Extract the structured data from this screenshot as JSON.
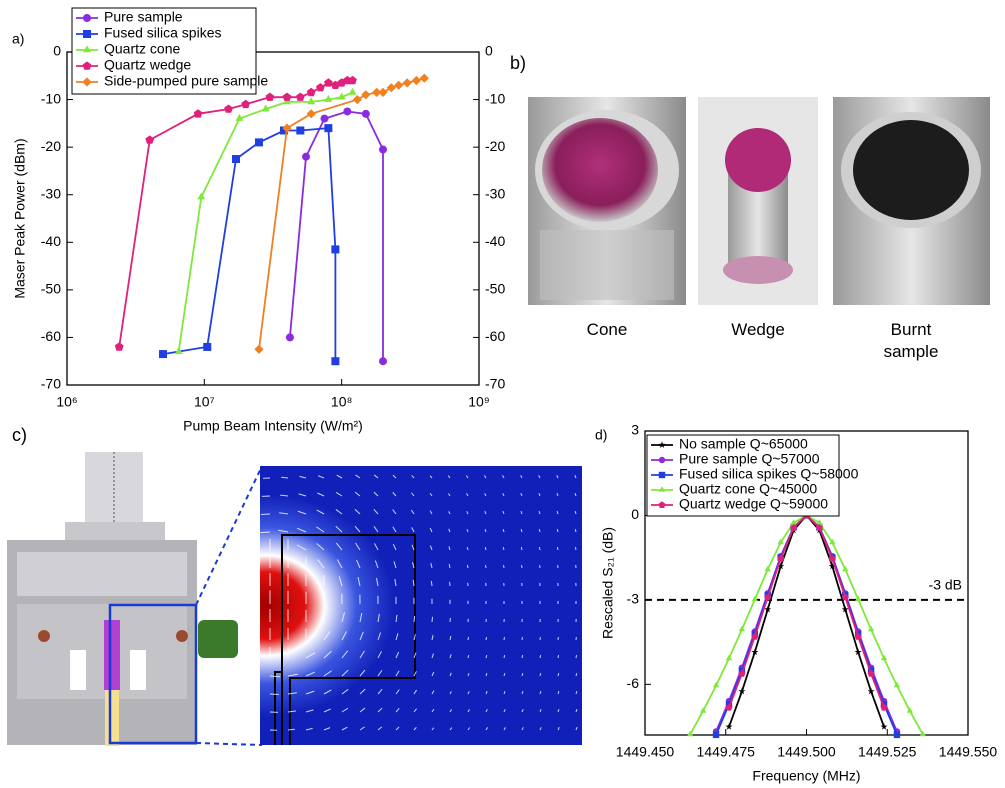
{
  "chart_data": [
    {
      "type": "line",
      "panel_label": "a)",
      "x_label": "Pump Beam Intensity (W/m²)",
      "y_label": "Maser Peak Power (dBm)",
      "xlog": true,
      "xlim": [
        1000000,
        1000000000
      ],
      "xticks": [
        {
          "value": 1000000,
          "label": "10⁶"
        },
        {
          "value": 10000000,
          "label": "10⁷"
        },
        {
          "value": 100000000,
          "label": "10⁸"
        },
        {
          "value": 1000000000,
          "label": "10⁹"
        }
      ],
      "ylim": [
        -70,
        0
      ],
      "yticks": [
        -70,
        -60,
        -50,
        -40,
        -30,
        -20,
        -10,
        0
      ],
      "y2lim": [
        -70,
        0
      ],
      "y2ticks": [
        -70,
        -60,
        -50,
        -40,
        -30,
        -20,
        -10,
        0
      ],
      "legend": "top-left",
      "series": [
        {
          "name": "Pure sample",
          "color": "#8a2be2",
          "marker": "circle",
          "x": [
            42000000,
            55000000,
            75000000,
            110000000,
            150000000,
            200000000,
            200000000
          ],
          "values": [
            -60,
            -22,
            -14,
            -12.5,
            -13,
            -20.5,
            -65
          ]
        },
        {
          "name": "Fused silica spikes",
          "color": "#1f3fe0",
          "marker": "square",
          "x": [
            5000000,
            10500000,
            17000000,
            25000000,
            38000000,
            50000000,
            80000000,
            90000000,
            90000000
          ],
          "values": [
            -63.5,
            -62,
            -22.5,
            -19,
            -16.5,
            -16.5,
            -16,
            -41.5,
            -65
          ]
        },
        {
          "name": "Quartz cone",
          "color": "#7fe83a",
          "marker": "triangle",
          "x": [
            6500000,
            9500000,
            18000000,
            28000000,
            40000000,
            60000000,
            80000000,
            100000000,
            120000000
          ],
          "values": [
            -63,
            -30.5,
            -14,
            -12,
            -10.5,
            -10.5,
            -10,
            -9.5,
            -8.5
          ]
        },
        {
          "name": "Quartz wedge",
          "color": "#e0207a",
          "marker": "pentagon",
          "x": [
            2400000,
            4000000,
            9000000,
            15000000,
            20000000,
            30000000,
            40000000,
            50000000,
            60000000,
            70000000,
            80000000,
            90000000,
            100000000,
            110000000,
            120000000
          ],
          "values": [
            -62,
            -18.5,
            -13,
            -12,
            -11,
            -9.5,
            -9.5,
            -9.5,
            -8.5,
            -7.5,
            -6.5,
            -7,
            -6.5,
            -6,
            -6
          ]
        },
        {
          "name": "Side-pumped pure sample",
          "color": "#f08020",
          "marker": "diamond",
          "x": [
            25000000,
            40000000,
            60000000,
            130000000,
            150000000,
            180000000,
            200000000,
            230000000,
            260000000,
            300000000,
            350000000,
            400000000
          ],
          "values": [
            -62.5,
            -16,
            -13,
            -10,
            -9,
            -8.5,
            -8.5,
            -7.5,
            -7,
            -6.5,
            -6,
            -5.5
          ]
        }
      ]
    },
    {
      "type": "line",
      "panel_label": "d)",
      "x_label": "Frequency (MHz)",
      "y_label": "Rescaled S₂₁ (dB)",
      "xlim": [
        1449.45,
        1449.55
      ],
      "xticks": [
        {
          "value": 1449.45,
          "label": "1449.450"
        },
        {
          "value": 1449.475,
          "label": "1449.475"
        },
        {
          "value": 1449.5,
          "label": "1449.500"
        },
        {
          "value": 1449.525,
          "label": "1449.525"
        },
        {
          "value": 1449.55,
          "label": "1449.550"
        }
      ],
      "ylim": [
        -7.8,
        3
      ],
      "yticks": [
        -6,
        -3,
        0,
        3
      ],
      "legend": "top-left",
      "hline": {
        "value": -3,
        "label": "-3 dB"
      },
      "x": [
        1449.46,
        1449.464,
        1449.468,
        1449.472,
        1449.476,
        1449.48,
        1449.484,
        1449.488,
        1449.492,
        1449.496,
        1449.5,
        1449.504,
        1449.508,
        1449.512,
        1449.516,
        1449.52,
        1449.524,
        1449.528,
        1449.532,
        1449.536,
        1449.54
      ],
      "series": [
        {
          "name": "No sample Q~65000",
          "color": "#000000",
          "marker": "star",
          "values": [
            null,
            null,
            null,
            null,
            -7.507,
            -6.251,
            -4.856,
            -3.341,
            -1.804,
            -0.526,
            0,
            -0.526,
            -1.804,
            -3.341,
            -4.856,
            -6.251,
            -7.507,
            null,
            null,
            null,
            null
          ]
        },
        {
          "name": "Pure sample Q~57000",
          "color": "#8a2be2",
          "marker": "circle",
          "values": [
            null,
            null,
            null,
            -7.672,
            -6.593,
            -5.408,
            -4.122,
            -2.765,
            -1.449,
            -0.41,
            0,
            -0.41,
            -1.449,
            -2.765,
            -4.122,
            -5.408,
            -6.593,
            -7.672,
            null,
            null,
            null
          ]
        },
        {
          "name": "Fused silica spikes Q~58000",
          "color": "#1f3fe0",
          "marker": "square",
          "values": [
            null,
            null,
            null,
            -7.796,
            -6.711,
            -5.516,
            -4.215,
            -2.838,
            -1.493,
            -0.424,
            0,
            -0.424,
            -1.493,
            -2.838,
            -4.215,
            -5.516,
            -6.711,
            -7.796,
            null,
            null,
            null
          ]
        },
        {
          "name": "Quartz cone Q~45000",
          "color": "#7fe83a",
          "marker": "triangle",
          "values": [
            null,
            -7.779,
            -6.944,
            -6.045,
            -5.08,
            -4.052,
            -2.982,
            -1.918,
            -0.958,
            -0.26,
            0,
            -0.26,
            -0.958,
            -1.918,
            -2.982,
            -4.052,
            -5.08,
            -6.045,
            -6.944,
            -7.779,
            null
          ]
        },
        {
          "name": "Quartz wedge Q~59000",
          "color": "#e0207a",
          "marker": "pentagon",
          "values": [
            null,
            null,
            null,
            null,
            -6.827,
            -5.624,
            -4.308,
            -2.91,
            -1.536,
            -0.438,
            0,
            -0.438,
            -1.536,
            -2.91,
            -4.308,
            -5.624,
            -6.827,
            null,
            null,
            null,
            null
          ]
        }
      ]
    }
  ],
  "photos": {
    "panel_label": "b)",
    "captions": [
      "Cone",
      "Wedge",
      "Burnt sample"
    ]
  },
  "simulation": {
    "panel_label": "c)"
  }
}
